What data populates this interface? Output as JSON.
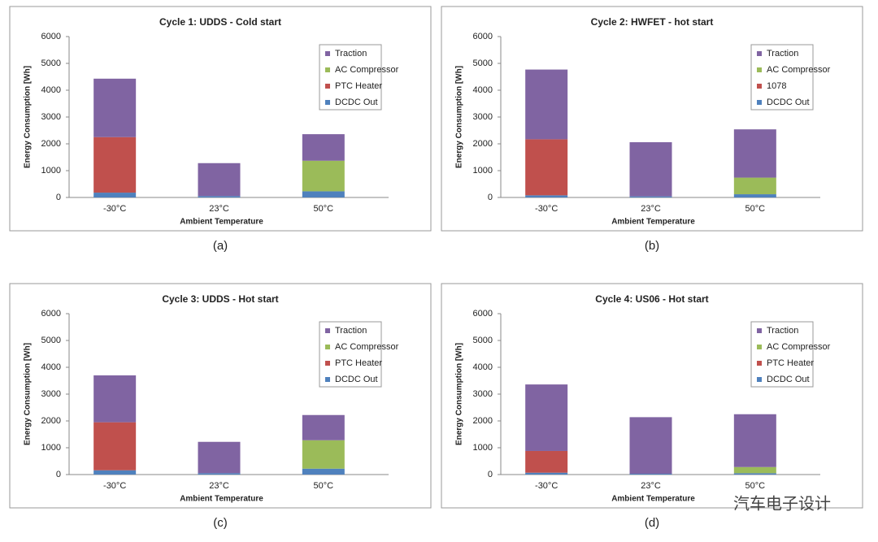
{
  "chart_data": [
    {
      "type": "bar",
      "stacked": true,
      "title": "Cycle 1: UDDS - Cold start",
      "caption": "(a)",
      "x_label": "Ambient Temperature",
      "y_label": "Energy Consumption [Wh]",
      "categories": [
        "-30°C",
        "23°C",
        "50°C"
      ],
      "series": [
        {
          "name": "DCDC Out",
          "color": "#4f81bd",
          "values": [
            180,
            50,
            230
          ]
        },
        {
          "name": "PTC Heater",
          "color": "#c0504d",
          "values": [
            2070,
            0,
            0
          ]
        },
        {
          "name": "AC Compressor",
          "color": "#9bbb59",
          "values": [
            0,
            0,
            1140
          ]
        },
        {
          "name": "Traction",
          "color": "#8064a2",
          "values": [
            2180,
            1230,
            990
          ]
        }
      ],
      "ylim": [
        0,
        6000
      ],
      "yticks": [
        0,
        1000,
        2000,
        3000,
        4000,
        5000,
        6000
      ],
      "legend": "upper right"
    },
    {
      "type": "bar",
      "stacked": true,
      "title": "Cycle 2: HWFET - hot start",
      "caption": "(b)",
      "x_label": "Ambient Temperature",
      "y_label": "Energy Consumption [Wh]",
      "categories": [
        "-30°C",
        "23°C",
        "50°C"
      ],
      "series": [
        {
          "name": "DCDC Out",
          "color": "#4f81bd",
          "values": [
            80,
            40,
            120
          ]
        },
        {
          "name": "1078",
          "color": "#c0504d",
          "values": [
            2090,
            0,
            0
          ]
        },
        {
          "name": "AC Compressor",
          "color": "#9bbb59",
          "values": [
            0,
            0,
            620
          ]
        },
        {
          "name": "Traction",
          "color": "#8064a2",
          "values": [
            2600,
            2020,
            1800
          ]
        }
      ],
      "ylim": [
        0,
        6000
      ],
      "yticks": [
        0,
        1000,
        2000,
        3000,
        4000,
        5000,
        6000
      ],
      "legend": "upper right"
    },
    {
      "type": "bar",
      "stacked": true,
      "title": "Cycle 3: UDDS - Hot start",
      "caption": "(c)",
      "x_label": "Ambient Temperature",
      "y_label": "Energy Consumption [Wh]",
      "categories": [
        "-30°C",
        "23°C",
        "50°C"
      ],
      "series": [
        {
          "name": "DCDC Out",
          "color": "#4f81bd",
          "values": [
            160,
            50,
            220
          ]
        },
        {
          "name": "PTC Heater",
          "color": "#c0504d",
          "values": [
            1790,
            0,
            0
          ]
        },
        {
          "name": "AC Compressor",
          "color": "#9bbb59",
          "values": [
            0,
            0,
            1060
          ]
        },
        {
          "name": "Traction",
          "color": "#8064a2",
          "values": [
            1750,
            1170,
            940
          ]
        }
      ],
      "ylim": [
        0,
        6000
      ],
      "yticks": [
        0,
        1000,
        2000,
        3000,
        4000,
        5000,
        6000
      ],
      "legend": "upper right"
    },
    {
      "type": "bar",
      "stacked": true,
      "title": "Cycle 4: US06 - Hot start",
      "caption": "(d)",
      "x_label": "Ambient Temperature",
      "y_label": "Energy Consumption [Wh]",
      "categories": [
        "-30°C",
        "23°C",
        "50°C"
      ],
      "series": [
        {
          "name": "DCDC Out",
          "color": "#4f81bd",
          "values": [
            70,
            30,
            50
          ]
        },
        {
          "name": "PTC Heater",
          "color": "#c0504d",
          "values": [
            810,
            0,
            0
          ]
        },
        {
          "name": "AC Compressor",
          "color": "#9bbb59",
          "values": [
            0,
            0,
            230
          ]
        },
        {
          "name": "Traction",
          "color": "#8064a2",
          "values": [
            2480,
            2110,
            1970
          ]
        }
      ],
      "ylim": [
        0,
        6000
      ],
      "yticks": [
        0,
        1000,
        2000,
        3000,
        4000,
        5000,
        6000
      ],
      "legend": "upper right"
    }
  ],
  "watermark": "汽车电子设计"
}
